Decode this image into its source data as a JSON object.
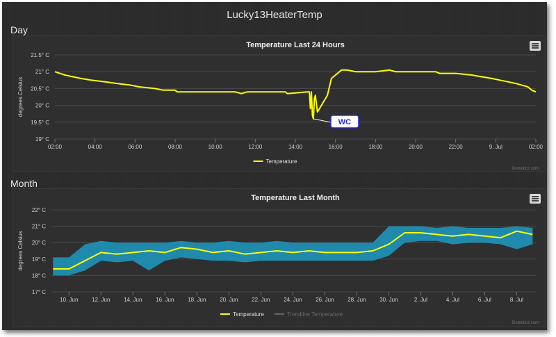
{
  "page": {
    "title": "Lucky13HeaterTemp"
  },
  "sections": {
    "day": "Day",
    "month": "Month"
  },
  "chart_data": [
    {
      "type": "line",
      "title": "Temperature Last 24 Hours",
      "ylabel": "degrees Celsius",
      "ylim": [
        19,
        21.5
      ],
      "y_ticks": [
        "19° C",
        "19.5° C",
        "20° C",
        "20.5° C",
        "21° C",
        "21.5° C"
      ],
      "x_ticks": [
        "02:00",
        "04:00",
        "06:00",
        "08:00",
        "10:00",
        "12:00",
        "14:00",
        "16:00",
        "18:00",
        "20:00",
        "22:00",
        "9. Jul",
        "02:00"
      ],
      "series": [
        {
          "name": "Temperature",
          "color": "#ffff00",
          "x_hours": [
            0,
            0.25,
            0.5,
            0.9,
            1.3,
            1.8,
            2.5,
            3.1,
            3.8,
            4.2,
            5.0,
            5.4,
            6.0,
            6.1,
            8.0,
            9.0,
            9.3,
            9.6,
            10.0,
            11.5,
            11.6,
            12.6,
            12.7,
            12.75,
            12.8,
            12.85,
            12.9,
            12.95,
            13.0,
            13.1,
            13.3,
            13.6,
            13.8,
            14.3,
            14.6,
            15.0,
            16.0,
            16.7,
            17.0,
            18.0,
            19.0,
            19.2,
            20.0,
            20.8,
            21.3,
            21.8,
            22.2,
            22.6,
            23.0,
            23.3,
            23.6,
            23.8,
            24.0
          ],
          "values": [
            21.0,
            20.95,
            20.9,
            20.85,
            20.8,
            20.75,
            20.7,
            20.65,
            20.6,
            20.55,
            20.5,
            20.45,
            20.45,
            20.4,
            20.4,
            20.4,
            20.35,
            20.4,
            20.4,
            20.4,
            20.35,
            20.4,
            20.4,
            19.9,
            20.4,
            19.7,
            19.6,
            20.2,
            20.3,
            19.8,
            20.0,
            20.3,
            20.8,
            21.05,
            21.05,
            21.0,
            21.0,
            21.05,
            21.0,
            21.0,
            21.0,
            20.95,
            20.95,
            20.9,
            20.85,
            20.8,
            20.75,
            20.7,
            20.65,
            20.6,
            20.55,
            20.45,
            20.4
          ]
        }
      ],
      "annotation": {
        "label": "WC"
      },
      "legend": [
        "Temperature"
      ],
      "credit": "Domoticz.com"
    },
    {
      "type": "line",
      "title": "Temperature Last Month",
      "ylabel": "degrees Celsius",
      "ylim": [
        17,
        22
      ],
      "y_ticks": [
        "17° C",
        "18° C",
        "19° C",
        "20° C",
        "21° C",
        "22° C"
      ],
      "x_ticks": [
        "10. Jun",
        "12. Jun",
        "14. Jun",
        "16. Jun",
        "18. Jun",
        "20. Jun",
        "22. Jun",
        "24. Jun",
        "26. Jun",
        "28. Jun",
        "30. Jun",
        "2. Jul",
        "4. Jul",
        "6. Jul",
        "8. Jul"
      ],
      "x_days": [
        9,
        10,
        11,
        12,
        13,
        14,
        15,
        16,
        17,
        18,
        19,
        20,
        21,
        22,
        23,
        24,
        25,
        26,
        27,
        28,
        29,
        30,
        31,
        32,
        33,
        34,
        35,
        36,
        37,
        38,
        39
      ],
      "series": [
        {
          "name": "Temperature",
          "color": "#ffff00",
          "values": [
            18.4,
            18.4,
            18.9,
            19.4,
            19.3,
            19.4,
            19.5,
            19.4,
            19.7,
            19.6,
            19.4,
            19.5,
            19.3,
            19.4,
            19.5,
            19.4,
            19.5,
            19.4,
            19.4,
            19.4,
            19.5,
            19.9,
            20.6,
            20.6,
            20.5,
            20.4,
            20.5,
            20.4,
            20.3,
            20.7,
            20.5
          ]
        },
        {
          "name": "Trendline Temperature",
          "color": "#777777",
          "values": []
        }
      ],
      "range_band": {
        "color": "#1f8fb3",
        "low": [
          18.0,
          18.0,
          18.3,
          18.9,
          18.8,
          18.9,
          18.3,
          18.9,
          19.1,
          19.0,
          18.9,
          18.9,
          18.8,
          18.9,
          18.9,
          18.9,
          18.9,
          18.9,
          18.9,
          18.9,
          18.9,
          19.2,
          20.0,
          20.1,
          20.1,
          19.9,
          20.0,
          20.0,
          19.9,
          19.6,
          19.9
        ],
        "high": [
          19.1,
          19.1,
          19.9,
          20.1,
          20.0,
          20.0,
          20.0,
          20.0,
          20.1,
          20.0,
          20.0,
          20.1,
          20.0,
          20.0,
          20.1,
          20.0,
          20.0,
          20.0,
          20.0,
          20.0,
          20.0,
          21.0,
          21.0,
          21.0,
          20.9,
          21.0,
          20.9,
          20.9,
          20.9,
          21.0,
          20.9
        ]
      },
      "legend": [
        "Temperature",
        "Trendline Temperature"
      ],
      "credit": "Domoticz.com"
    }
  ]
}
